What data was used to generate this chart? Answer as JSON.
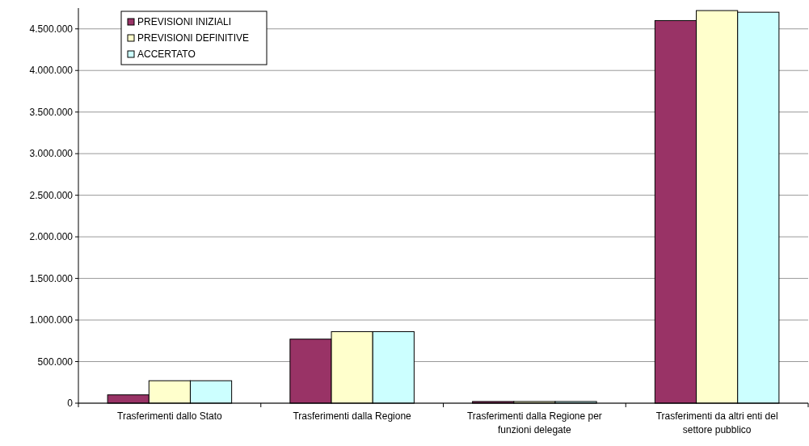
{
  "chart_data": {
    "type": "bar",
    "categories": [
      "Trasferimenti dallo Stato",
      "Trasferimenti dalla Regione",
      "Trasferimenti dalla Regione per funzioni delegate",
      "Trasferimenti da altri enti del settore pubblico"
    ],
    "series": [
      {
        "name": "PREVISIONI INIZIALI",
        "color": "#993366",
        "values": [
          100000,
          770000,
          20000,
          4600000
        ]
      },
      {
        "name": "PREVISIONI DEFINITIVE",
        "color": "#ffffcc",
        "values": [
          270000,
          860000,
          20000,
          4720000
        ]
      },
      {
        "name": "ACCERTATO",
        "color": "#ccffff",
        "values": [
          270000,
          860000,
          20000,
          4700000
        ]
      }
    ],
    "ylim": [
      0,
      4750000
    ],
    "yticks": [
      {
        "value": 0,
        "label": "0"
      },
      {
        "value": 500000,
        "label": "500.000"
      },
      {
        "value": 1000000,
        "label": "1.000.000"
      },
      {
        "value": 1500000,
        "label": "1.500.000"
      },
      {
        "value": 2000000,
        "label": "2.000.000"
      },
      {
        "value": 2500000,
        "label": "2.500.000"
      },
      {
        "value": 3000000,
        "label": "3.000.000"
      },
      {
        "value": 3500000,
        "label": "3.500.000"
      },
      {
        "value": 4000000,
        "label": "4.000.000"
      },
      {
        "value": 4500000,
        "label": "4.500.000"
      }
    ],
    "grid": "y",
    "legend": "top left"
  }
}
